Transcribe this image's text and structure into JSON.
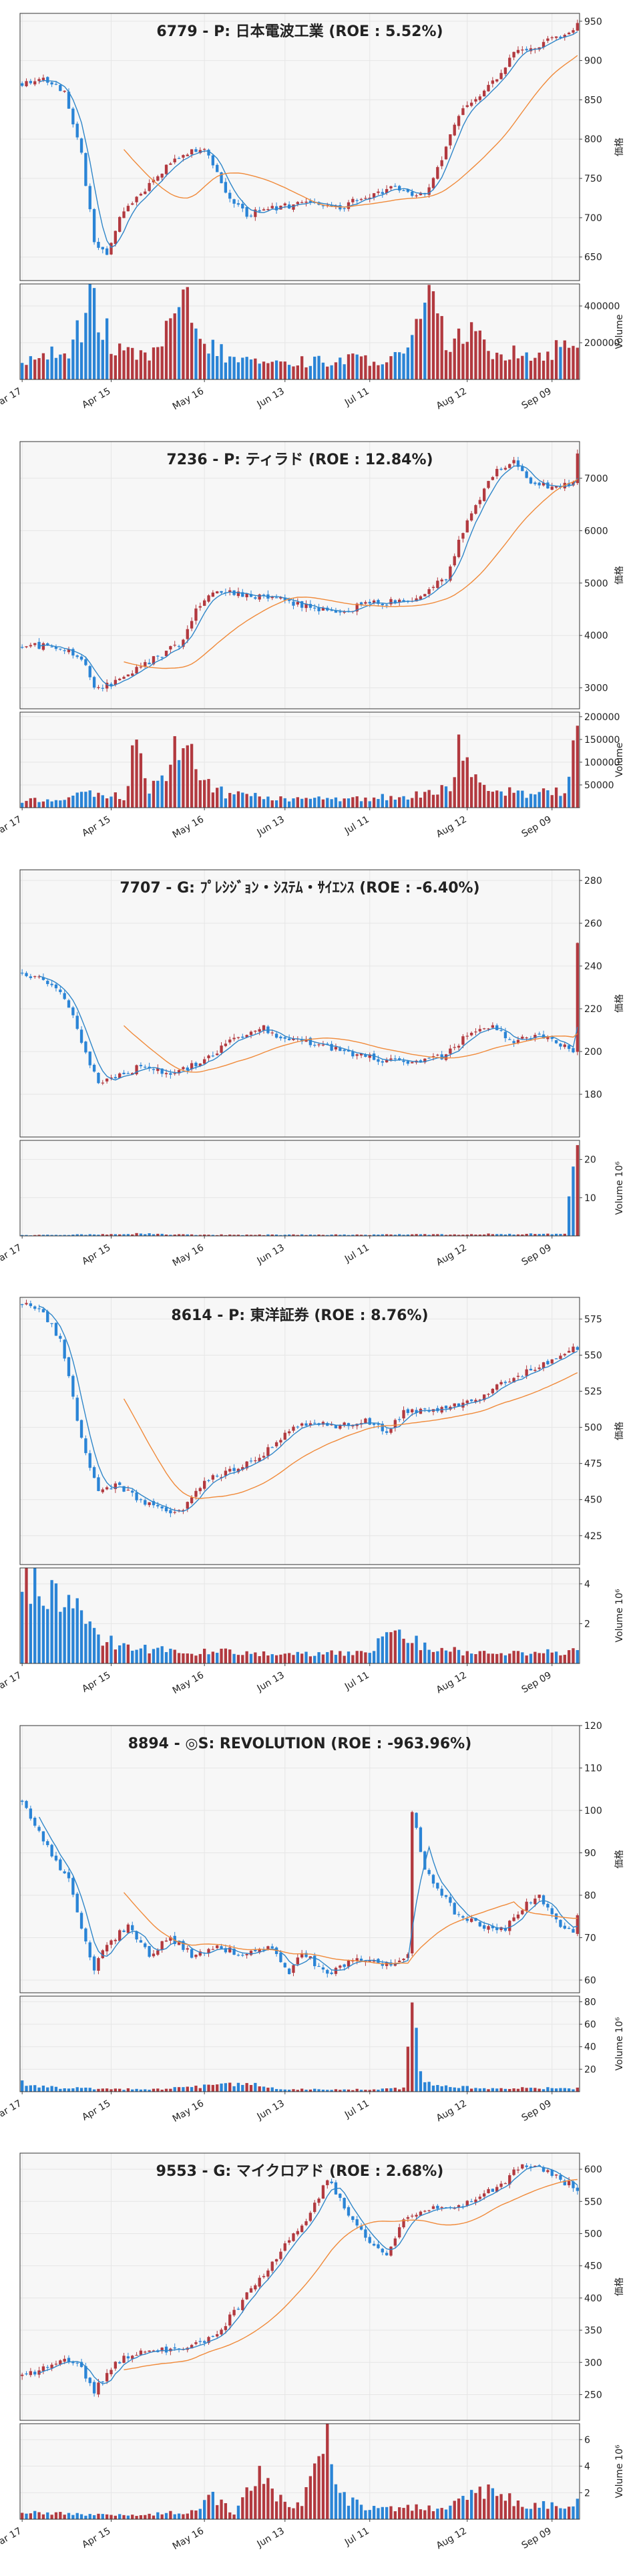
{
  "colors": {
    "up": "#b2393f",
    "down": "#2a84d6",
    "ma_short": "#2f86c9",
    "ma_long": "#f08a3a",
    "grid": "#e6e6e6",
    "panel_bg": "#f7f7f7"
  },
  "x_ticks": [
    "Mar 17",
    "Apr 15",
    "May 16",
    "Jun 13",
    "Jul 11",
    "Aug 12",
    "Sep 09"
  ],
  "chart_data": [
    {
      "type": "candlestick",
      "title": "6779 - P: 日本電波工業 (ROE : 5.52%)",
      "ylabel": "価格",
      "vol_label": "Volume",
      "ylim": [
        620,
        960
      ],
      "yticks": [
        650,
        700,
        750,
        800,
        850,
        900,
        950
      ],
      "vol_ylim": [
        0,
        520000
      ],
      "vol_ticks": [
        200000,
        400000
      ],
      "vol_tick_labels": [
        "200000",
        "400000"
      ],
      "anchors": [
        [
          0,
          870
        ],
        [
          5,
          880
        ],
        [
          10,
          860
        ],
        [
          14,
          780
        ],
        [
          17,
          670
        ],
        [
          20,
          650
        ],
        [
          23,
          700
        ],
        [
          28,
          730
        ],
        [
          33,
          760
        ],
        [
          38,
          780
        ],
        [
          42,
          790
        ],
        [
          45,
          770
        ],
        [
          49,
          720
        ],
        [
          53,
          705
        ],
        [
          58,
          710
        ],
        [
          63,
          715
        ],
        [
          68,
          720
        ],
        [
          73,
          710
        ],
        [
          78,
          720
        ],
        [
          83,
          730
        ],
        [
          88,
          740
        ],
        [
          92,
          725
        ],
        [
          96,
          735
        ],
        [
          100,
          790
        ],
        [
          104,
          840
        ],
        [
          108,
          855
        ],
        [
          112,
          880
        ],
        [
          116,
          910
        ],
        [
          120,
          915
        ],
        [
          124,
          925
        ],
        [
          128,
          935
        ],
        [
          131,
          945
        ]
      ],
      "vol_anchors": [
        [
          0,
          90000
        ],
        [
          12,
          180000
        ],
        [
          16,
          420000
        ],
        [
          19,
          300000
        ],
        [
          22,
          150000
        ],
        [
          30,
          120000
        ],
        [
          39,
          410000
        ],
        [
          42,
          200000
        ],
        [
          50,
          110000
        ],
        [
          60,
          90000
        ],
        [
          70,
          100000
        ],
        [
          80,
          110000
        ],
        [
          90,
          120000
        ],
        [
          94,
          300000
        ],
        [
          96,
          450000
        ],
        [
          100,
          200000
        ],
        [
          106,
          250000
        ],
        [
          110,
          150000
        ],
        [
          116,
          160000
        ],
        [
          122,
          130000
        ],
        [
          126,
          170000
        ],
        [
          131,
          200000
        ]
      ]
    },
    {
      "type": "candlestick",
      "title": "7236 - P: ティラド (ROE : 12.84%)",
      "ylabel": "価格",
      "vol_label": "Volume",
      "ylim": [
        2600,
        7700
      ],
      "yticks": [
        3000,
        4000,
        5000,
        6000,
        7000
      ],
      "vol_ylim": [
        0,
        210000
      ],
      "vol_ticks": [
        50000,
        100000,
        150000,
        200000
      ],
      "vol_tick_labels": [
        "50000",
        "100000",
        "150000",
        "200000"
      ],
      "anchors": [
        [
          0,
          3800
        ],
        [
          8,
          3780
        ],
        [
          14,
          3600
        ],
        [
          17,
          3000
        ],
        [
          22,
          3100
        ],
        [
          30,
          3500
        ],
        [
          38,
          3900
        ],
        [
          41,
          4500
        ],
        [
          44,
          4800
        ],
        [
          52,
          4800
        ],
        [
          60,
          4700
        ],
        [
          68,
          4550
        ],
        [
          74,
          4450
        ],
        [
          82,
          4600
        ],
        [
          92,
          4700
        ],
        [
          96,
          4900
        ],
        [
          100,
          5100
        ],
        [
          104,
          6000
        ],
        [
          108,
          6600
        ],
        [
          112,
          7200
        ],
        [
          116,
          7300
        ],
        [
          120,
          6900
        ],
        [
          126,
          6800
        ],
        [
          130,
          6900
        ],
        [
          131,
          7500
        ]
      ],
      "vol_anchors": [
        [
          0,
          15000
        ],
        [
          10,
          20000
        ],
        [
          16,
          30000
        ],
        [
          24,
          25000
        ],
        [
          27,
          140000
        ],
        [
          30,
          30000
        ],
        [
          39,
          160000
        ],
        [
          42,
          60000
        ],
        [
          48,
          30000
        ],
        [
          60,
          20000
        ],
        [
          70,
          20000
        ],
        [
          80,
          20000
        ],
        [
          90,
          25000
        ],
        [
          96,
          30000
        ],
        [
          102,
          50000
        ],
        [
          103,
          170000
        ],
        [
          106,
          60000
        ],
        [
          112,
          40000
        ],
        [
          120,
          30000
        ],
        [
          128,
          40000
        ],
        [
          131,
          190000
        ]
      ]
    },
    {
      "type": "candlestick",
      "title": "7707 - G: ﾌﾟﾚｼｼﾞｮﾝ・ｼｽﾃﾑ・ｻｲｴﾝｽ (ROE : -6.40%)",
      "ylabel": "価格",
      "vol_label": "Volume  10⁶",
      "ylim": [
        160,
        285
      ],
      "yticks": [
        180,
        200,
        220,
        240,
        260,
        280
      ],
      "vol_ylim": [
        0,
        25
      ],
      "vol_ticks": [
        10,
        20
      ],
      "vol_tick_labels": [
        "10",
        "20"
      ],
      "anchors": [
        [
          0,
          237
        ],
        [
          6,
          232
        ],
        [
          10,
          226
        ],
        [
          14,
          205
        ],
        [
          18,
          185
        ],
        [
          22,
          188
        ],
        [
          28,
          193
        ],
        [
          36,
          190
        ],
        [
          42,
          195
        ],
        [
          48,
          203
        ],
        [
          56,
          212
        ],
        [
          60,
          208
        ],
        [
          66,
          205
        ],
        [
          72,
          202
        ],
        [
          80,
          198
        ],
        [
          88,
          195
        ],
        [
          94,
          195
        ],
        [
          100,
          198
        ],
        [
          106,
          210
        ],
        [
          110,
          212
        ],
        [
          116,
          205
        ],
        [
          122,
          207
        ],
        [
          126,
          205
        ],
        [
          130,
          200
        ],
        [
          131,
          250
        ]
      ],
      "vol_anchors": [
        [
          0,
          0.2
        ],
        [
          20,
          0.4
        ],
        [
          29,
          0.6
        ],
        [
          40,
          0.3
        ],
        [
          60,
          0.3
        ],
        [
          80,
          0.3
        ],
        [
          100,
          0.4
        ],
        [
          110,
          0.5
        ],
        [
          128,
          0.5
        ],
        [
          131,
          23
        ]
      ]
    },
    {
      "type": "candlestick",
      "title": "8614 - P: 東洋証券 (ROE : 8.76%)",
      "ylabel": "価格",
      "vol_label": "Volume  10⁶",
      "ylim": [
        405,
        590
      ],
      "yticks": [
        425,
        450,
        475,
        500,
        525,
        550,
        575
      ],
      "vol_ylim": [
        0,
        4.8
      ],
      "vol_ticks": [
        2,
        4
      ],
      "vol_tick_labels": [
        "2",
        "4"
      ],
      "anchors": [
        [
          0,
          585
        ],
        [
          5,
          580
        ],
        [
          9,
          560
        ],
        [
          12,
          520
        ],
        [
          15,
          480
        ],
        [
          18,
          455
        ],
        [
          22,
          460
        ],
        [
          28,
          450
        ],
        [
          34,
          440
        ],
        [
          38,
          445
        ],
        [
          44,
          465
        ],
        [
          50,
          470
        ],
        [
          56,
          480
        ],
        [
          62,
          495
        ],
        [
          68,
          505
        ],
        [
          74,
          500
        ],
        [
          80,
          505
        ],
        [
          86,
          498
        ],
        [
          90,
          510
        ],
        [
          96,
          512
        ],
        [
          102,
          515
        ],
        [
          108,
          520
        ],
        [
          114,
          532
        ],
        [
          120,
          540
        ],
        [
          126,
          548
        ],
        [
          131,
          555
        ]
      ],
      "vol_anchors": [
        [
          0,
          4.3
        ],
        [
          4,
          3.6
        ],
        [
          8,
          3.8
        ],
        [
          12,
          2.8
        ],
        [
          18,
          1.2
        ],
        [
          26,
          0.8
        ],
        [
          40,
          0.6
        ],
        [
          60,
          0.5
        ],
        [
          80,
          0.5
        ],
        [
          90,
          1.8
        ],
        [
          94,
          0.8
        ],
        [
          110,
          0.5
        ],
        [
          131,
          0.6
        ]
      ]
    },
    {
      "type": "candlestick",
      "title": "8894 - ◎S: REVOLUTION (ROE : -963.96%)",
      "ylabel": "価格",
      "vol_label": "Volume  10⁶",
      "ylim": [
        57,
        120
      ],
      "yticks": [
        60,
        70,
        80,
        90,
        100,
        110,
        120
      ],
      "vol_ylim": [
        0,
        85
      ],
      "vol_ticks": [
        20,
        40,
        60,
        80
      ],
      "vol_tick_labels": [
        "20",
        "40",
        "60",
        "80"
      ],
      "anchors": [
        [
          0,
          102
        ],
        [
          4,
          95
        ],
        [
          8,
          88
        ],
        [
          11,
          84
        ],
        [
          14,
          72
        ],
        [
          17,
          63
        ],
        [
          20,
          68
        ],
        [
          25,
          73
        ],
        [
          30,
          66
        ],
        [
          35,
          70
        ],
        [
          40,
          66
        ],
        [
          46,
          68
        ],
        [
          52,
          66
        ],
        [
          58,
          68
        ],
        [
          63,
          62
        ],
        [
          66,
          67
        ],
        [
          72,
          61
        ],
        [
          78,
          65
        ],
        [
          84,
          64
        ],
        [
          88,
          64
        ],
        [
          91,
          66
        ],
        [
          92,
          100
        ],
        [
          95,
          86
        ],
        [
          98,
          82
        ],
        [
          102,
          76
        ],
        [
          108,
          73
        ],
        [
          114,
          72
        ],
        [
          118,
          77
        ],
        [
          122,
          80
        ],
        [
          126,
          74
        ],
        [
          130,
          71
        ],
        [
          131,
          75
        ]
      ],
      "vol_anchors": [
        [
          0,
          8
        ],
        [
          6,
          4
        ],
        [
          14,
          3
        ],
        [
          30,
          2
        ],
        [
          54,
          7
        ],
        [
          60,
          2
        ],
        [
          80,
          2
        ],
        [
          90,
          3
        ],
        [
          91,
          40
        ],
        [
          92,
          70
        ],
        [
          94,
          15
        ],
        [
          97,
          5
        ],
        [
          110,
          3
        ],
        [
          131,
          3
        ]
      ]
    },
    {
      "type": "candlestick",
      "title": "9553 - G: マイクロアド (ROE : 2.68%)",
      "ylabel": "価格",
      "vol_label": "Volume  10⁶",
      "ylim": [
        210,
        625
      ],
      "yticks": [
        250,
        300,
        350,
        400,
        450,
        500,
        550,
        600
      ],
      "vol_ylim": [
        0,
        7.2
      ],
      "vol_ticks": [
        2,
        4,
        6
      ],
      "vol_tick_labels": [
        "2",
        "4",
        "6"
      ],
      "anchors": [
        [
          0,
          280
        ],
        [
          5,
          290
        ],
        [
          10,
          310
        ],
        [
          14,
          290
        ],
        [
          17,
          255
        ],
        [
          22,
          300
        ],
        [
          28,
          318
        ],
        [
          36,
          318
        ],
        [
          42,
          330
        ],
        [
          46,
          340
        ],
        [
          50,
          380
        ],
        [
          55,
          420
        ],
        [
          62,
          480
        ],
        [
          68,
          530
        ],
        [
          72,
          585
        ],
        [
          76,
          540
        ],
        [
          82,
          490
        ],
        [
          86,
          470
        ],
        [
          90,
          520
        ],
        [
          96,
          540
        ],
        [
          102,
          540
        ],
        [
          108,
          560
        ],
        [
          114,
          580
        ],
        [
          118,
          610
        ],
        [
          122,
          600
        ],
        [
          128,
          580
        ],
        [
          131,
          570
        ]
      ],
      "vol_anchors": [
        [
          0,
          0.5
        ],
        [
          10,
          0.4
        ],
        [
          20,
          0.3
        ],
        [
          30,
          0.4
        ],
        [
          42,
          0.6
        ],
        [
          43,
          2.0
        ],
        [
          50,
          0.5
        ],
        [
          56,
          3.8
        ],
        [
          60,
          1.6
        ],
        [
          66,
          1.0
        ],
        [
          72,
          6.4
        ],
        [
          74,
          2.0
        ],
        [
          80,
          1.0
        ],
        [
          90,
          0.8
        ],
        [
          100,
          0.9
        ],
        [
          110,
          2.2
        ],
        [
          118,
          1.0
        ],
        [
          131,
          1.2
        ]
      ]
    }
  ]
}
